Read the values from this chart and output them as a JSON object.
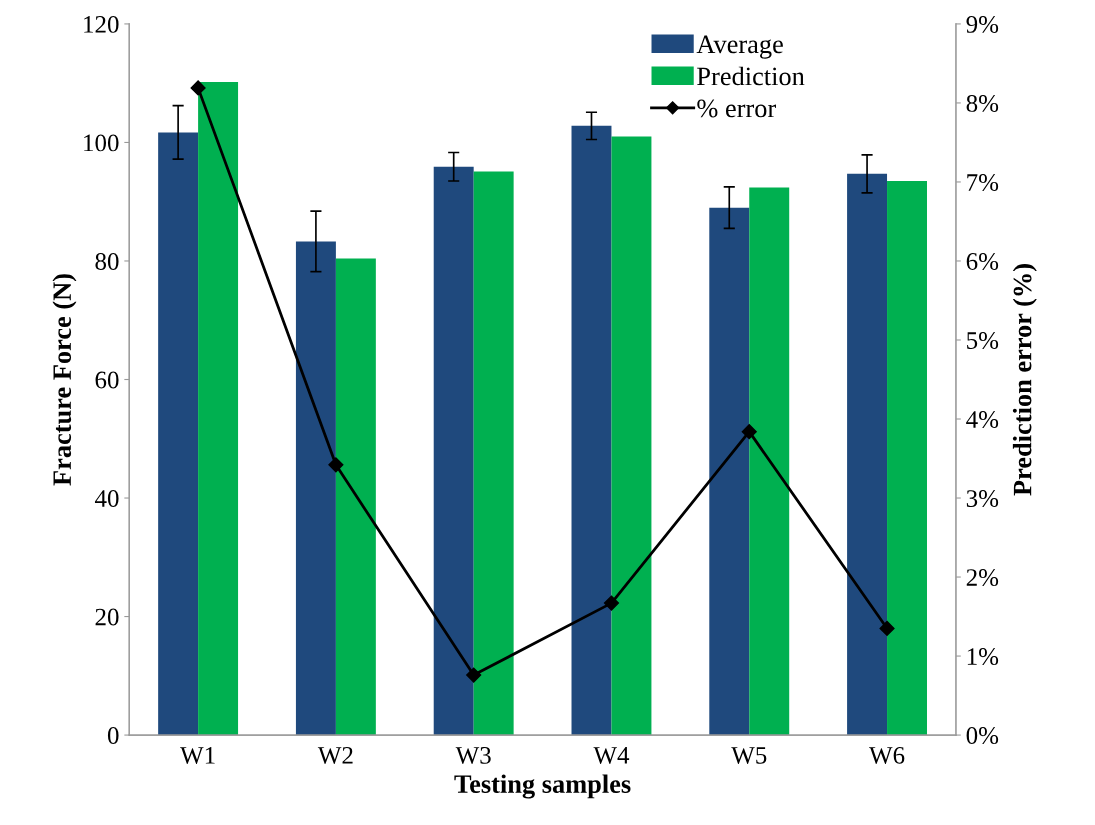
{
  "chart_data": {
    "type": "bar",
    "xlabel": "Testing samples",
    "ylabel": "Fracture Force (N)",
    "y2label": "Prediction error (%)",
    "categories": [
      "W1",
      "W2",
      "W3",
      "W4",
      "W5",
      "W6"
    ],
    "series": [
      {
        "name": "Average",
        "color": "#1f497d",
        "values": [
          101.7,
          83.3,
          95.9,
          102.8,
          89.0,
          94.7
        ],
        "errors": [
          4.5,
          5.1,
          2.4,
          2.3,
          3.5,
          3.2
        ]
      },
      {
        "name": "Prediction",
        "color": "#00b050",
        "values": [
          110.2,
          80.4,
          95.1,
          101.0,
          92.4,
          93.5
        ]
      },
      {
        "name": "% error",
        "type": "line",
        "axis": "y2",
        "color": "#000000",
        "marker": "diamond",
        "values": [
          8.19,
          3.42,
          0.76,
          1.67,
          3.84,
          1.35
        ]
      }
    ],
    "ylim": [
      0,
      120
    ],
    "yticks": [
      0,
      20,
      40,
      60,
      80,
      100,
      120
    ],
    "y2lim": [
      0,
      9
    ],
    "y2ticks": [
      {
        "value": 0,
        "label": "0%"
      },
      {
        "value": 1,
        "label": "1%"
      },
      {
        "value": 2,
        "label": "2%"
      },
      {
        "value": 3,
        "label": "3%"
      },
      {
        "value": 4,
        "label": "4%"
      },
      {
        "value": 5,
        "label": "5%"
      },
      {
        "value": 6,
        "label": "6%"
      },
      {
        "value": 7,
        "label": "7%"
      },
      {
        "value": 8,
        "label": "8%"
      },
      {
        "value": 9,
        "label": "9%"
      }
    ],
    "grid": false,
    "legend": "top right"
  }
}
